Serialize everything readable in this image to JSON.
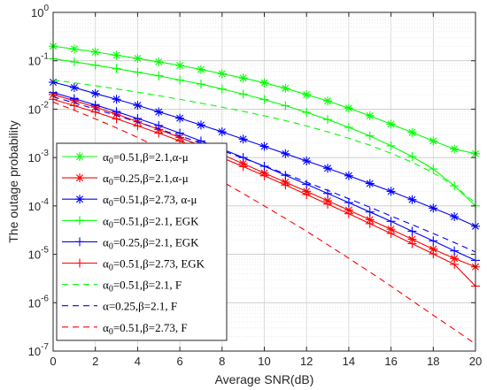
{
  "chart_data": {
    "type": "line",
    "title": "",
    "xlabel": "Average SNR(dB)",
    "ylabel": "The outage probability",
    "x_ticks": [
      "0",
      "2",
      "4",
      "6",
      "8",
      "10",
      "12",
      "14",
      "16",
      "18",
      "20"
    ],
    "y_tick_exponents": [
      "0",
      "-1",
      "-2",
      "-3",
      "-4",
      "-5",
      "-6",
      "-7"
    ],
    "y_tick_base": "10",
    "xlim": [
      0,
      20
    ],
    "ylim": [
      1e-07,
      1
    ],
    "yscale": "log",
    "grid": true,
    "legend_position": "bottom-left",
    "x": [
      0,
      1,
      2,
      3,
      4,
      5,
      6,
      7,
      8,
      9,
      10,
      11,
      12,
      13,
      14,
      15,
      16,
      17,
      18,
      19,
      20
    ],
    "series": [
      {
        "name": "α0=0.51,β=2.1,α-μ",
        "legend": {
          "pre": "α",
          "sub": "0",
          "post": "=0.51,β=2.1,α-μ"
        },
        "color": "#00ff00",
        "line": "solid",
        "marker": "asterisk",
        "values": [
          0.2,
          0.175,
          0.152,
          0.13,
          0.112,
          0.095,
          0.08,
          0.066,
          0.054,
          0.044,
          0.035,
          0.027,
          0.02,
          0.0148,
          0.0105,
          0.0073,
          0.0049,
          0.0033,
          0.0022,
          0.0015,
          0.0012
        ]
      },
      {
        "name": "α0=0.25,β=2.1,α-μ",
        "legend": {
          "pre": "α",
          "sub": "0",
          "post": "=0.25,β=2.1,α-μ"
        },
        "color": "#ff0000",
        "line": "solid",
        "marker": "asterisk",
        "values": [
          0.02,
          0.015,
          0.011,
          0.0079,
          0.0055,
          0.0038,
          0.0026,
          0.00175,
          0.00115,
          0.00075,
          0.00048,
          0.00031,
          0.0002,
          0.000128,
          8.2e-05,
          5.2e-05,
          3.3e-05,
          2.05e-05,
          1.28e-05,
          8.2e-06,
          5.5e-06
        ]
      },
      {
        "name": "α0=0.51,β=2.73, α-μ",
        "legend": {
          "pre": "α",
          "sub": "0",
          "post": "=0.51,β=2.73, α-μ"
        },
        "color": "#0000ff",
        "line": "solid",
        "marker": "asterisk",
        "values": [
          0.036,
          0.028,
          0.021,
          0.016,
          0.012,
          0.0088,
          0.0065,
          0.0047,
          0.0034,
          0.0024,
          0.0017,
          0.0012,
          0.00085,
          0.0006,
          0.00042,
          0.00029,
          0.0002,
          0.000135,
          9e-05,
          6e-05,
          3.8e-05
        ]
      },
      {
        "name": "α0=0.51,β=2.1, EGK",
        "legend": {
          "pre": "α",
          "sub": "0",
          "post": "=0.51,β=2.1, EGK"
        },
        "color": "#00ff00",
        "line": "solid",
        "marker": "plus",
        "values": [
          0.11,
          0.095,
          0.081,
          0.069,
          0.058,
          0.049,
          0.04,
          0.033,
          0.026,
          0.0205,
          0.0158,
          0.0118,
          0.0086,
          0.0061,
          0.0042,
          0.0028,
          0.00175,
          0.00105,
          0.00058,
          0.00026,
          0.0001
        ]
      },
      {
        "name": "α0=0.25,β=2.1, EGK",
        "legend": {
          "pre": "α",
          "sub": "0",
          "post": "=0.25,β=2.1, EGK"
        },
        "color": "#0000ff",
        "line": "solid",
        "marker": "plus",
        "values": [
          0.022,
          0.0165,
          0.0122,
          0.0089,
          0.0064,
          0.0046,
          0.0032,
          0.0022,
          0.0015,
          0.001,
          0.00066,
          0.00043,
          0.00028,
          0.000181,
          0.000117,
          7.5e-05,
          4.8e-05,
          3e-05,
          1.9e-05,
          1.18e-05,
          7.5e-06
        ]
      },
      {
        "name": "α0=0.51,β=2.73, EGK",
        "legend": {
          "pre": "α",
          "sub": "0",
          "post": "=0.51,β=2.73, EGK"
        },
        "color": "#ff0000",
        "line": "solid",
        "marker": "plus",
        "values": [
          0.016,
          0.0118,
          0.0087,
          0.0063,
          0.0045,
          0.0032,
          0.0022,
          0.00148,
          0.00099,
          0.00065,
          0.00042,
          0.00027,
          0.000172,
          0.000109,
          6.9e-05,
          4.3e-05,
          2.7e-05,
          1.66e-05,
          1.02e-05,
          6.2e-06,
          2.2e-06
        ]
      },
      {
        "name": "α0=0.51,β=2.1, F",
        "legend": {
          "pre": "α",
          "sub": "0",
          "post": "=0.51,β=2.1, F"
        },
        "color": "#00ff00",
        "line": "dashed",
        "marker": "none",
        "values": [
          0.04,
          0.035,
          0.0305,
          0.0262,
          0.0224,
          0.019,
          0.016,
          0.0133,
          0.011,
          0.009,
          0.0073,
          0.0058,
          0.0045,
          0.0034,
          0.0025,
          0.0018,
          0.00122,
          0.0008,
          0.00048,
          0.00026,
          0.000115
        ]
      },
      {
        "name": "α=0.25,β=2.1, F",
        "legend": {
          "pre": "α",
          "sub": "",
          "post": "=0.25,β=2.1, F"
        },
        "color": "#0000ff",
        "line": "dashed",
        "marker": "none",
        "values": [
          0.018,
          0.0135,
          0.01,
          0.0074,
          0.0054,
          0.0039,
          0.0028,
          0.002,
          0.0014,
          0.00097,
          0.00067,
          0.00046,
          0.00031,
          0.00021,
          0.000141,
          9.4e-05,
          6.2e-05,
          4.1e-05,
          2.7e-05,
          1.75e-05,
          1.12e-05
        ]
      },
      {
        "name": "α0=0.51,β=2.73, F",
        "legend": {
          "pre": "α",
          "sub": "0",
          "post": "=0.51,β=2.73, F"
        },
        "color": "#ff0000",
        "line": "dashed",
        "marker": "none",
        "values": [
          0.014,
          0.0095,
          0.0063,
          0.0041,
          0.0026,
          0.0016,
          0.00096,
          0.00056,
          0.00032,
          0.00018,
          0.0001,
          5.5e-05,
          3e-05,
          1.58e-05,
          8.3e-06,
          4.3e-06,
          2.2e-06,
          1.1e-06,
          5.5e-07,
          2.8e-07,
          1.4e-07
        ]
      }
    ]
  }
}
